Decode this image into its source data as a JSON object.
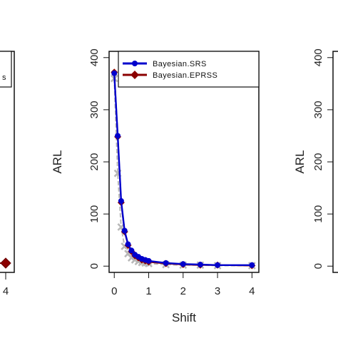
{
  "chart_data": [
    {
      "type": "line",
      "xlabel": "",
      "ylabel": "",
      "x_ticks": [
        "4"
      ],
      "legend_fragment": "s",
      "series": [
        {
          "name": "",
          "color": "#8b0000",
          "x": [
            3.9
          ],
          "y": [
            2
          ]
        }
      ]
    },
    {
      "type": "line",
      "xlabel": "Shift",
      "ylabel": "ARL",
      "xlim": [
        -0.15,
        4.2
      ],
      "ylim": [
        -12,
        412
      ],
      "x_ticks": [
        "0",
        "1",
        "2",
        "3",
        "4"
      ],
      "y_ticks": [
        "0",
        "100",
        "200",
        "300",
        "400"
      ],
      "legend_position": "top-right",
      "series": [
        {
          "name": "Bayesian.SRS",
          "color": "#0000cc",
          "x": [
            0,
            0.1,
            0.2,
            0.3,
            0.4,
            0.5,
            0.6,
            0.7,
            0.8,
            0.9,
            1.0,
            1.5,
            2.0,
            2.5,
            3.0,
            4.0
          ],
          "y": [
            370,
            250,
            125,
            68,
            42,
            30,
            22,
            18,
            14,
            12,
            10,
            6,
            4,
            3,
            2,
            2
          ]
        },
        {
          "name": "Bayesian.EPRSS",
          "color": "#8b0000",
          "x": [
            0,
            0.1,
            0.2,
            0.3,
            0.4,
            0.5,
            0.6,
            0.7,
            0.8,
            0.9,
            1.0,
            1.5,
            2.0,
            2.5,
            3.0,
            4.0
          ],
          "y": [
            372,
            248,
            122,
            66,
            40,
            28,
            20,
            16,
            12,
            10,
            8,
            5,
            3,
            2,
            2,
            1
          ]
        },
        {
          "name": "",
          "color": "#b8b8b8",
          "x": [
            0,
            0.1,
            0.2,
            0.3,
            0.4,
            0.5,
            0.6,
            0.7,
            0.8,
            0.9,
            1.0,
            1.5,
            2.0,
            2.5,
            3.0,
            4.0
          ],
          "y": [
            360,
            178,
            75,
            38,
            24,
            16,
            12,
            9,
            7,
            6,
            5,
            3,
            2,
            2,
            1,
            1
          ]
        }
      ]
    },
    {
      "type": "line",
      "xlabel": "",
      "ylabel": "ARL",
      "y_ticks": [
        "0",
        "100",
        "200",
        "300",
        "400"
      ],
      "series": []
    }
  ]
}
